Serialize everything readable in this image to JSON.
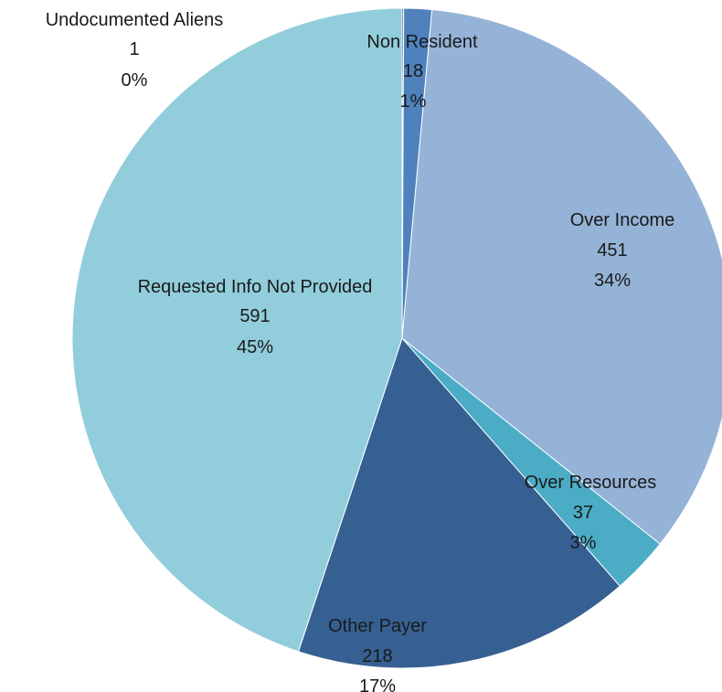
{
  "chart_data": {
    "type": "pie",
    "start_angle_deg": 0,
    "direction": "clockwise",
    "slices": [
      {
        "label": "Undocumented Aliens",
        "value": 1,
        "value_text": "1",
        "percent": "0%",
        "color": "#1F3B6E"
      },
      {
        "label": "Non Resident",
        "value": 18,
        "value_text": "18",
        "percent": "1%",
        "color": "#4F81BD"
      },
      {
        "label": "Over Income",
        "value": 451,
        "value_text": "451",
        "percent": "34%",
        "color": "#95B3D7"
      },
      {
        "label": "Over Resources",
        "value": 37,
        "value_text": "37",
        "percent": "3%",
        "color": "#4BACC6"
      },
      {
        "label": "Other Payer",
        "value": 218,
        "value_text": "218",
        "percent": "17%",
        "color": "#366092"
      },
      {
        "label": "Requested Info Not Provided",
        "value": 591,
        "value_text": "591",
        "percent": "45%",
        "color": "#92CDDC"
      }
    ]
  }
}
